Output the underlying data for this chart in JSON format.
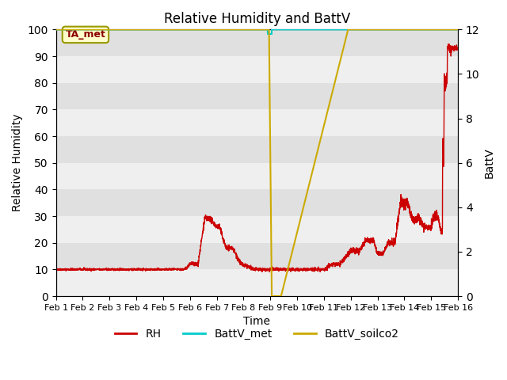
{
  "title": "Relative Humidity and BattV",
  "xlabel": "Time",
  "ylabel_left": "Relative Humidity",
  "ylabel_right": "BattV",
  "ylim_left": [
    0,
    100
  ],
  "ylim_right": [
    0,
    12
  ],
  "yticks_left": [
    0,
    10,
    20,
    30,
    40,
    50,
    60,
    70,
    80,
    90,
    100
  ],
  "yticks_right": [
    0,
    2,
    4,
    6,
    8,
    10,
    12
  ],
  "xtick_labels": [
    "Feb 1",
    "Feb 2",
    "Feb 3",
    "Feb 4",
    "Feb 5",
    "Feb 6",
    "Feb 7",
    "Feb 8",
    "Feb 9",
    "Feb 10",
    "Feb 11",
    "Feb 12",
    "Feb 13",
    "Feb 14",
    "Feb 15",
    "Feb 16"
  ],
  "bg_color": "#e0e0e0",
  "annotation_text": "TA_met",
  "rh_color": "#cc0000",
  "battv_met_color": "#00cccc",
  "battv_soilco2_color": "#ccaa00",
  "legend_labels": [
    "RH",
    "BattV_met",
    "BattV_soilco2"
  ],
  "figsize": [
    6.4,
    4.8
  ],
  "dpi": 100
}
